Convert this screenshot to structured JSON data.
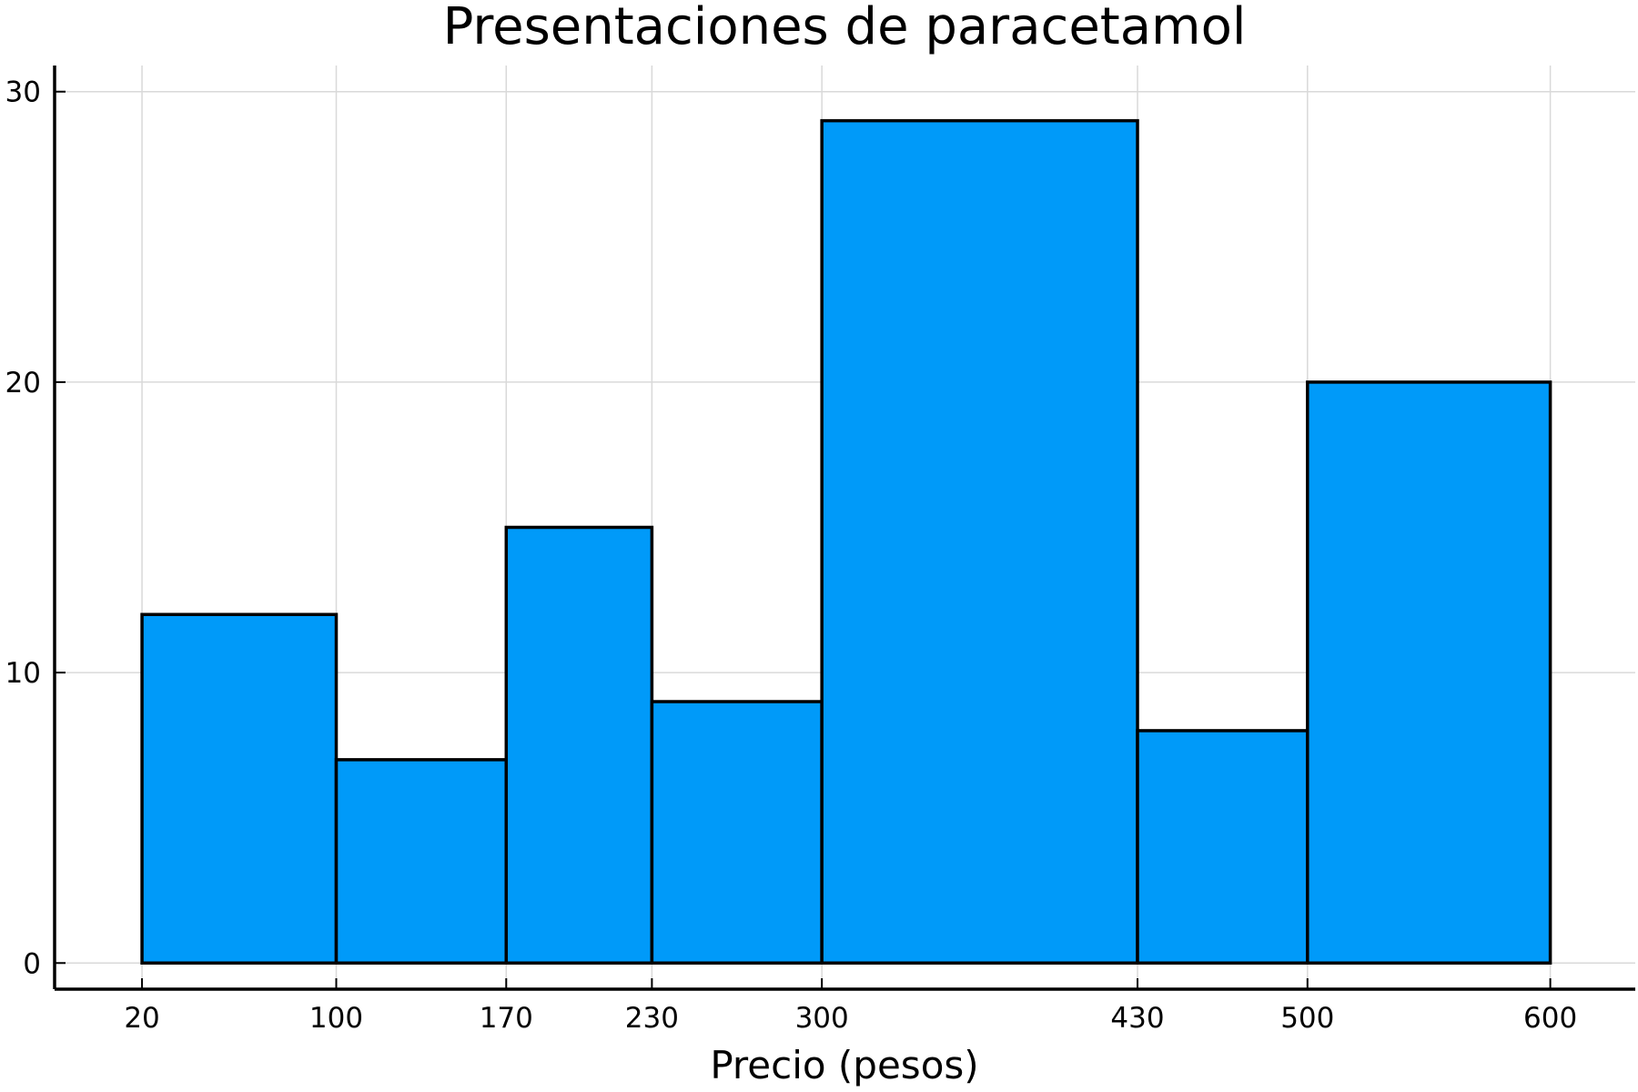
{
  "chart_data": {
    "type": "bar",
    "title": "Presentaciones de paracetamol",
    "xlabel": "Precio (pesos)",
    "ylabel": "",
    "bin_edges": [
      20,
      100,
      170,
      230,
      300,
      430,
      500,
      600
    ],
    "values": [
      12,
      7,
      15,
      9,
      29,
      8,
      20
    ],
    "x_ticks": [
      20,
      100,
      170,
      230,
      300,
      430,
      500,
      600
    ],
    "y_ticks": [
      0,
      10,
      20,
      30
    ],
    "ylim": [
      -0.9,
      30.9
    ],
    "xlim": [
      -16,
      635
    ],
    "grid": true,
    "legend": "none",
    "bar_color": "#009af9",
    "edge_color": "#000000"
  }
}
